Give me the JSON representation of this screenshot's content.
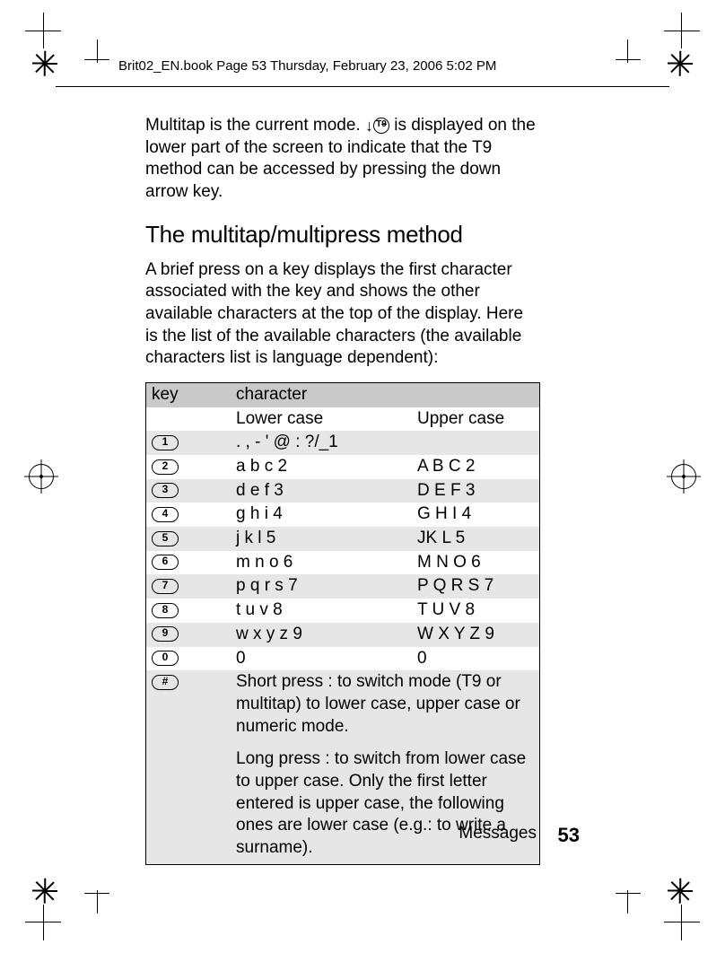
{
  "header": "Brit02_EN.book  Page 53  Thursday, February 23, 2006  5:02 PM",
  "intro": "Multitap is the current mode. ",
  "intro2": " is displayed on the lower part of the screen to indicate that the T9 method can be accessed by pressing the down arrow key.",
  "heading": "The multitap/multipress method",
  "para2": "A brief press on a key displays the first character associated with the key and shows the other available characters at the top of the display. Here is the list of the available characters (the available characters list is language dependent):",
  "th_key": "key",
  "th_char": "character",
  "sub_lower": "Lower case",
  "sub_upper": "Upper case",
  "rows": [
    {
      "key": "1",
      "lc": ". ,  - ' @ : ?/_1",
      "uc": ""
    },
    {
      "key": "2",
      "lc": "a b c 2",
      "uc": "A B C 2"
    },
    {
      "key": "3",
      "lc": "d e f 3",
      "uc": "D E F 3"
    },
    {
      "key": "4",
      "lc": "g h i 4",
      "uc": "G H I 4"
    },
    {
      "key": "5",
      "lc": "j k l 5",
      "uc": "JK L 5"
    },
    {
      "key": "6",
      "lc": "m n o 6",
      "uc": "M N O 6"
    },
    {
      "key": "7",
      "lc": "p q r s 7",
      "uc": "P Q R S 7"
    },
    {
      "key": "8",
      "lc": "t u v 8",
      "uc": "T U V 8"
    },
    {
      "key": "9",
      "lc": "w x y z 9",
      "uc": "W X Y Z 9"
    },
    {
      "key": "0",
      "lc": "0",
      "uc": "0"
    }
  ],
  "hash_key": "#",
  "hash_p1": "Short press : to switch mode (T9 or multitap) to lower case, upper case or numeric mode.",
  "hash_p2": "Long press : to switch from lower case to upper case. Only the first letter entered is upper case, the following ones are lower case (e.g.: to write a surname).",
  "footer_label": "Messages",
  "page_number": "53",
  "colors": {
    "shade_header": "#c9c9c9",
    "shade_row": "#e6e6e6",
    "text": "#000000",
    "bg": "#ffffff"
  }
}
